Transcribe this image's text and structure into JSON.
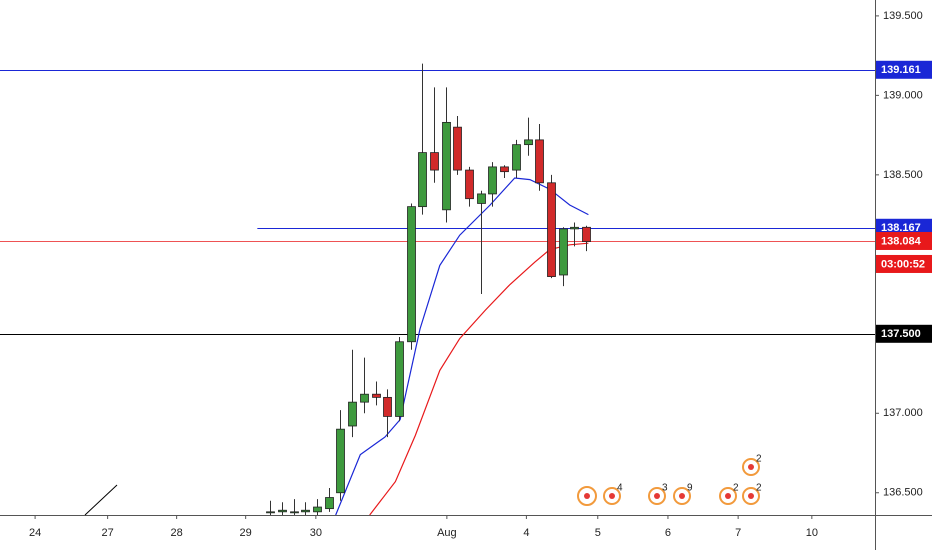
{
  "chart_data": {
    "type": "candlestick",
    "x": [
      0,
      1,
      2,
      3,
      4,
      5,
      6,
      7,
      8,
      9,
      10,
      11,
      12,
      13,
      14,
      15,
      16,
      17,
      18,
      19,
      20,
      21,
      22,
      23,
      24,
      25,
      26,
      27
    ],
    "open": [
      136.38,
      136.38,
      136.38,
      136.38,
      136.38,
      136.4,
      136.5,
      136.92,
      137.07,
      137.12,
      137.1,
      136.98,
      137.45,
      138.3,
      138.64,
      138.28,
      138.8,
      138.53,
      138.32,
      138.38,
      138.55,
      138.53,
      138.69,
      138.72,
      138.45,
      137.87,
      138.16,
      138.17
    ],
    "high": [
      136.45,
      136.44,
      136.46,
      136.44,
      136.46,
      136.53,
      137.02,
      137.4,
      137.35,
      137.2,
      137.15,
      137.48,
      138.32,
      139.2,
      139.05,
      139.05,
      138.87,
      138.55,
      138.4,
      138.58,
      138.56,
      138.72,
      138.86,
      138.82,
      138.5,
      138.17,
      138.2,
      138.18
    ],
    "low": [
      136.36,
      136.36,
      136.36,
      136.36,
      136.36,
      136.38,
      136.45,
      136.85,
      137.0,
      137.05,
      136.85,
      136.95,
      137.4,
      138.25,
      138.45,
      138.2,
      138.5,
      138.3,
      137.75,
      138.3,
      138.48,
      138.48,
      138.62,
      138.4,
      137.85,
      137.8,
      138.05,
      138.02
    ],
    "close": [
      136.38,
      136.39,
      136.38,
      136.39,
      136.41,
      136.47,
      136.9,
      137.07,
      137.12,
      137.1,
      136.98,
      137.45,
      138.3,
      138.64,
      138.53,
      138.83,
      138.53,
      138.35,
      138.38,
      138.55,
      138.52,
      138.69,
      138.72,
      138.45,
      137.86,
      138.16,
      138.17,
      138.08
    ],
    "up_color": "#3e9a3e",
    "down_color": "#d12a2a",
    "lines": [
      {
        "color": "#1a27d6",
        "x": [
          5.6,
          7.7,
          9.8,
          11.1,
          12.8,
          14.5,
          16.2,
          18.8,
          20.9,
          22.2,
          23.9,
          25.6,
          27.2
        ],
        "values": [
          136.36,
          136.74,
          136.85,
          136.96,
          137.53,
          137.93,
          138.12,
          138.31,
          138.48,
          138.47,
          138.41,
          138.31,
          138.25
        ]
      },
      {
        "color": "#e8191b",
        "x": [
          8.5,
          10.7,
          12.4,
          14.5,
          16.2,
          18.4,
          20.5,
          22.6,
          23.9,
          25.6,
          27.2
        ],
        "values": [
          136.36,
          136.57,
          136.86,
          137.27,
          137.47,
          137.65,
          137.81,
          137.95,
          138.03,
          138.06,
          138.07
        ]
      }
    ],
    "levels": [
      {
        "value": 139.161,
        "label": "139.161",
        "color": "#1a27d6"
      },
      {
        "value": 138.167,
        "label": "138.167",
        "color": "#1a27d6",
        "from": -1.1
      },
      {
        "value": 138.084,
        "label": "138.084",
        "color": "#e8191b"
      },
      {
        "value": 137.5,
        "label": "137.500",
        "color": "#000000"
      }
    ],
    "countdown": "03:00:52",
    "ylim": [
      136.36,
      139.6
    ],
    "yticks": [
      {
        "value": 139.5,
        "label": "139.500"
      },
      {
        "value": 139,
        "label": "139.000"
      },
      {
        "value": 138.5,
        "label": "138.500"
      },
      {
        "value": 137,
        "label": "137.000"
      },
      {
        "value": 136.5,
        "label": "136.500"
      }
    ],
    "xlim": [
      -23.1,
      51.7
    ],
    "xticks": [
      {
        "value": -20.1,
        "label": "24"
      },
      {
        "value": -13.9,
        "label": "27"
      },
      {
        "value": -8,
        "label": "28"
      },
      {
        "value": -2.1,
        "label": "29"
      },
      {
        "value": 3.9,
        "label": "30"
      },
      {
        "value": 15.1,
        "label": "Aug"
      },
      {
        "value": 21.9,
        "label": "4"
      },
      {
        "value": 28,
        "label": "5"
      },
      {
        "value": 34,
        "label": "6"
      },
      {
        "value": 40,
        "label": "7"
      },
      {
        "value": 46.3,
        "label": "10"
      }
    ],
    "events": [
      "4",
      "3",
      "9",
      "2",
      "2",
      "2"
    ]
  }
}
